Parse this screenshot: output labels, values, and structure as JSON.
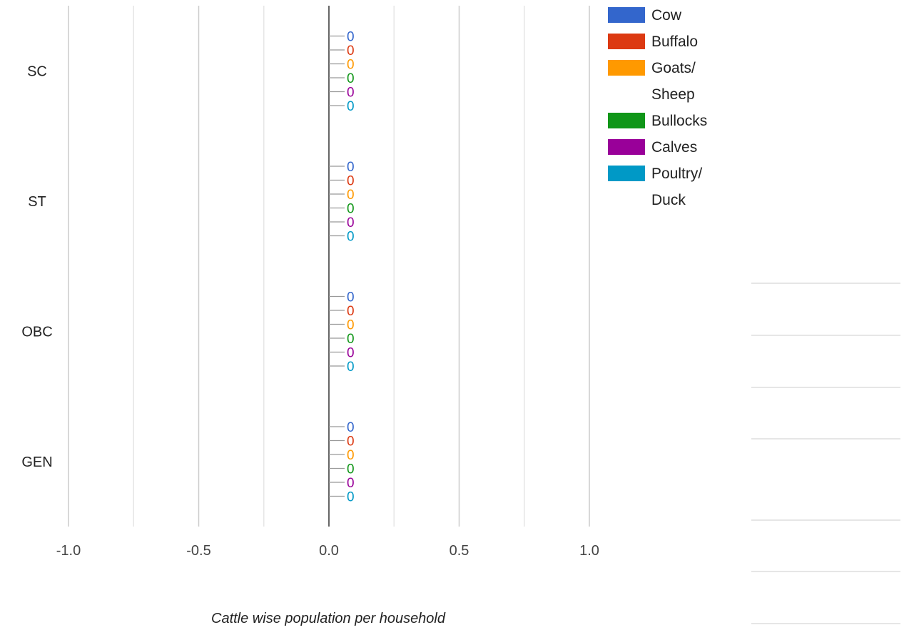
{
  "chart_data": {
    "type": "bar",
    "orientation": "horizontal",
    "categories": [
      "SC",
      "ST",
      "OBC",
      "GEN"
    ],
    "series": [
      {
        "name": "Cow",
        "values": [
          0,
          0,
          0,
          0
        ],
        "color": "#3366cc"
      },
      {
        "name": "Buffalo",
        "values": [
          0,
          0,
          0,
          0
        ],
        "color": "#dc3912"
      },
      {
        "name": "Goats/ Sheep",
        "values": [
          0,
          0,
          0,
          0
        ],
        "color": "#ff9900"
      },
      {
        "name": "Bullocks",
        "values": [
          0,
          0,
          0,
          0
        ],
        "color": "#109618"
      },
      {
        "name": "Calves",
        "values": [
          0,
          0,
          0,
          0
        ],
        "color": "#990099"
      },
      {
        "name": "Poultry/ Duck",
        "values": [
          0,
          0,
          0,
          0
        ],
        "color": "#0099c6"
      }
    ],
    "xlabel": "Cattle wise population per household",
    "ylabel": "",
    "xlim": [
      -1.0,
      1.0
    ],
    "xticks": [
      "-1.0",
      "-0.5",
      "0.0",
      "0.5",
      "1.0"
    ],
    "grid": true,
    "legend": "right"
  }
}
